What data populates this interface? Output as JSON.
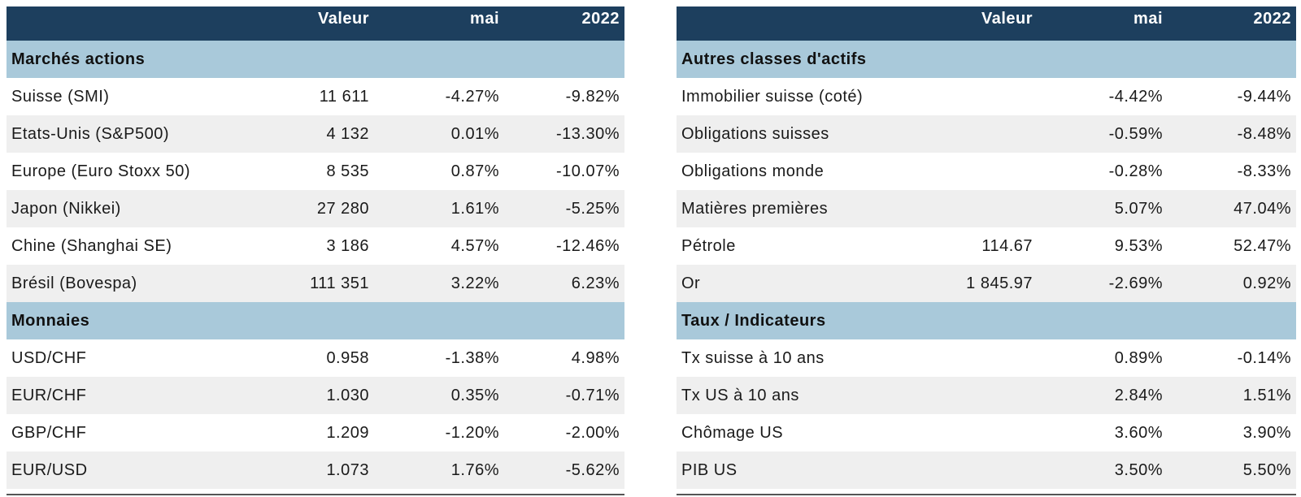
{
  "left": {
    "header": {
      "valeur": "Valeur",
      "mai": "mai",
      "year": "2022"
    },
    "sections": [
      {
        "title": "Marchés actions",
        "rows": [
          {
            "name": "Suisse (SMI)",
            "valeur": "11 611",
            "mai": "-4.27%",
            "year": "-9.82%"
          },
          {
            "name": "Etats-Unis (S&P500)",
            "valeur": "4 132",
            "mai": "0.01%",
            "year": "-13.30%"
          },
          {
            "name": "Europe (Euro Stoxx 50)",
            "valeur": "8 535",
            "mai": "0.87%",
            "year": "-10.07%"
          },
          {
            "name": "Japon (Nikkei)",
            "valeur": "27 280",
            "mai": "1.61%",
            "year": "-5.25%"
          },
          {
            "name": "Chine (Shanghai SE)",
            "valeur": "3 186",
            "mai": "4.57%",
            "year": "-12.46%"
          },
          {
            "name": "Brésil (Bovespa)",
            "valeur": "111 351",
            "mai": "3.22%",
            "year": "6.23%"
          }
        ]
      },
      {
        "title": "Monnaies",
        "rows": [
          {
            "name": "USD/CHF",
            "valeur": "0.958",
            "mai": "-1.38%",
            "year": "4.98%"
          },
          {
            "name": "EUR/CHF",
            "valeur": "1.030",
            "mai": "0.35%",
            "year": "-0.71%"
          },
          {
            "name": "GBP/CHF",
            "valeur": "1.209",
            "mai": "-1.20%",
            "year": "-2.00%"
          },
          {
            "name": "EUR/USD",
            "valeur": "1.073",
            "mai": "1.76%",
            "year": "-5.62%"
          }
        ]
      }
    ]
  },
  "right": {
    "header": {
      "valeur": "Valeur",
      "mai": "mai",
      "year": "2022"
    },
    "sections": [
      {
        "title": "Autres classes d'actifs",
        "rows": [
          {
            "name": "Immobilier suisse (coté)",
            "valeur": "",
            "mai": "-4.42%",
            "year": "-9.44%"
          },
          {
            "name": "Obligations suisses",
            "valeur": "",
            "mai": "-0.59%",
            "year": "-8.48%"
          },
          {
            "name": "Obligations monde",
            "valeur": "",
            "mai": "-0.28%",
            "year": "-8.33%"
          },
          {
            "name": "Matières premières",
            "valeur": "",
            "mai": "5.07%",
            "year": "47.04%"
          },
          {
            "name": "Pétrole",
            "valeur": "114.67",
            "mai": "9.53%",
            "year": "52.47%"
          },
          {
            "name": "Or",
            "valeur": "1 845.97",
            "mai": "-2.69%",
            "year": "0.92%"
          }
        ]
      },
      {
        "title": "Taux / Indicateurs",
        "rows": [
          {
            "name": "Tx suisse à 10 ans",
            "valeur": "",
            "mai": "0.89%",
            "year": "-0.14%"
          },
          {
            "name": "Tx US à 10 ans",
            "valeur": "",
            "mai": "2.84%",
            "year": "1.51%"
          },
          {
            "name": "Chômage US",
            "valeur": "",
            "mai": "3.60%",
            "year": "3.90%"
          },
          {
            "name": "PIB US",
            "valeur": "",
            "mai": "3.50%",
            "year": "5.50%"
          }
        ]
      }
    ]
  }
}
